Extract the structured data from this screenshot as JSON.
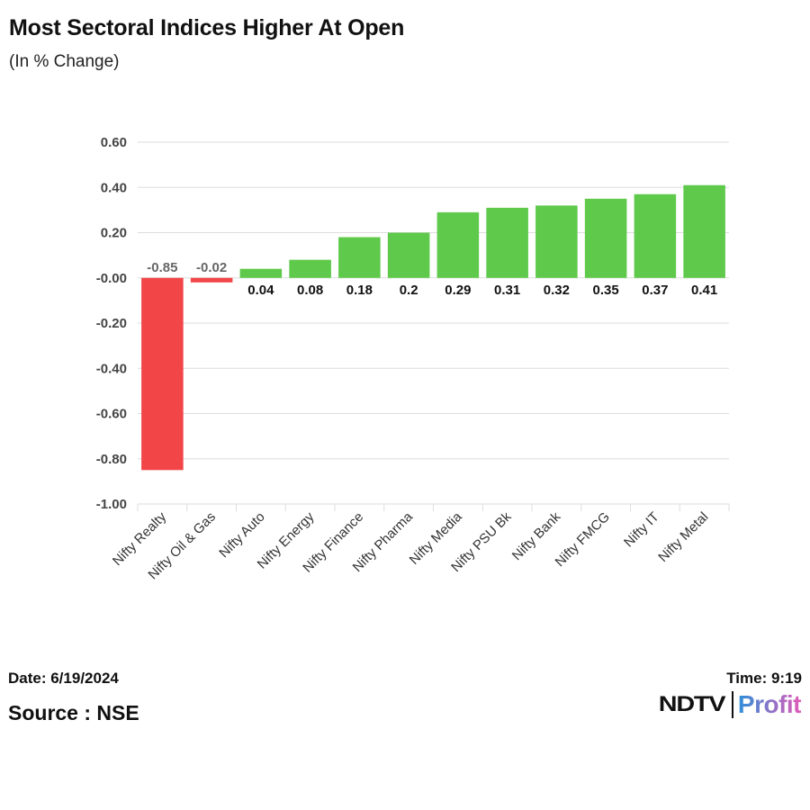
{
  "header": {
    "title": "Most Sectoral Indices Higher At Open",
    "subtitle": "(In % Change)"
  },
  "footer": {
    "date": "Date: 6/19/2024",
    "time": "Time: 9:19",
    "source": "Source : NSE",
    "logo_left": "NDTV",
    "logo_right": "Profit"
  },
  "colors": {
    "positive": "#5ec94a",
    "negative": "#f24547",
    "grid": "#dddddd",
    "positive_label": "#111111",
    "negative_label": "#666666",
    "logo_profit_start": "#2f8fd9",
    "logo_profit_end": "#e05ab8"
  },
  "chart_data": {
    "type": "bar",
    "title": "Most Sectoral Indices Higher At Open",
    "subtitle": "(In % Change)",
    "xlabel": "",
    "ylabel": "",
    "categories": [
      "Nifty Realty",
      "Nifty Oil & Gas",
      "Nifty Auto",
      "Nifty Energy",
      "Nifty Finance",
      "Nifty Pharma",
      "Nifty Media",
      "Nifty PSU Bk",
      "Nifty Bank",
      "Nifty FMCG",
      "Nifty IT",
      "Nifty Metal"
    ],
    "values": [
      -0.85,
      -0.02,
      0.04,
      0.08,
      0.18,
      0.2,
      0.29,
      0.31,
      0.32,
      0.35,
      0.37,
      0.41
    ],
    "value_labels": [
      "-0.85",
      "-0.02",
      "0.04",
      "0.08",
      "0.18",
      "0.2",
      "0.29",
      "0.31",
      "0.32",
      "0.35",
      "0.37",
      "0.41"
    ],
    "ylim": [
      -1.0,
      0.6
    ],
    "yticks": [
      0.6,
      0.4,
      0.2,
      0.0,
      -0.2,
      -0.4,
      -0.6,
      -0.8,
      -1.0
    ],
    "ytick_labels": [
      "0.60",
      "0.40",
      "0.20",
      "-0.00",
      "-0.20",
      "-0.40",
      "-0.60",
      "-0.80",
      "-1.00"
    ],
    "grid": true,
    "legend": "none"
  }
}
